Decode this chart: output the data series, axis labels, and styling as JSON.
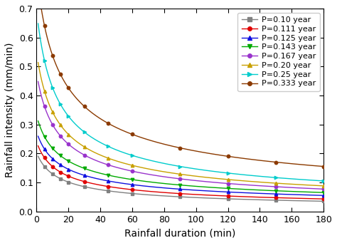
{
  "series": [
    {
      "label": "P=0.10 year",
      "color": "#808080",
      "marker": "s",
      "params": [
        0.82,
        8,
        0.72
      ]
    },
    {
      "label": "P=0.111 year",
      "color": "#e00000",
      "marker": "o",
      "params": [
        1.02,
        8,
        0.73
      ]
    },
    {
      "label": "P=0.125 year",
      "color": "#1010e0",
      "marker": "^",
      "params": [
        1.25,
        8,
        0.74
      ]
    },
    {
      "label": "P=0.143 year",
      "color": "#00aa00",
      "marker": "v",
      "params": [
        1.55,
        8,
        0.75
      ]
    },
    {
      "label": "P=0.167 year",
      "color": "#9933cc",
      "marker": "o",
      "params": [
        2.05,
        8,
        0.77
      ]
    },
    {
      "label": "P=0.20 year",
      "color": "#c8a000",
      "marker": "^",
      "params": [
        2.55,
        8,
        0.78
      ]
    },
    {
      "label": "P=0.25 year",
      "color": "#00cccc",
      "marker": ">",
      "params": [
        3.25,
        8,
        0.79
      ]
    },
    {
      "label": "P=0.333 year",
      "color": "#8B3a00",
      "marker": "o",
      "params": [
        4.5,
        8,
        0.8
      ]
    }
  ],
  "x_points": [
    5,
    10,
    15,
    20,
    30,
    45,
    60,
    90,
    120,
    150,
    180
  ],
  "xlabel": "Rainfall duration (min)",
  "ylabel": "Rainfall intensity (mm/min)",
  "xlim": [
    0,
    180
  ],
  "ylim": [
    0.0,
    0.7
  ],
  "xticks": [
    0,
    20,
    40,
    60,
    80,
    100,
    120,
    140,
    160,
    180
  ],
  "yticks": [
    0.0,
    0.1,
    0.2,
    0.3,
    0.4,
    0.5,
    0.6,
    0.7
  ],
  "background_color": "#ffffff",
  "axis_fontsize": 10,
  "tick_fontsize": 9,
  "legend_fontsize": 8.0
}
